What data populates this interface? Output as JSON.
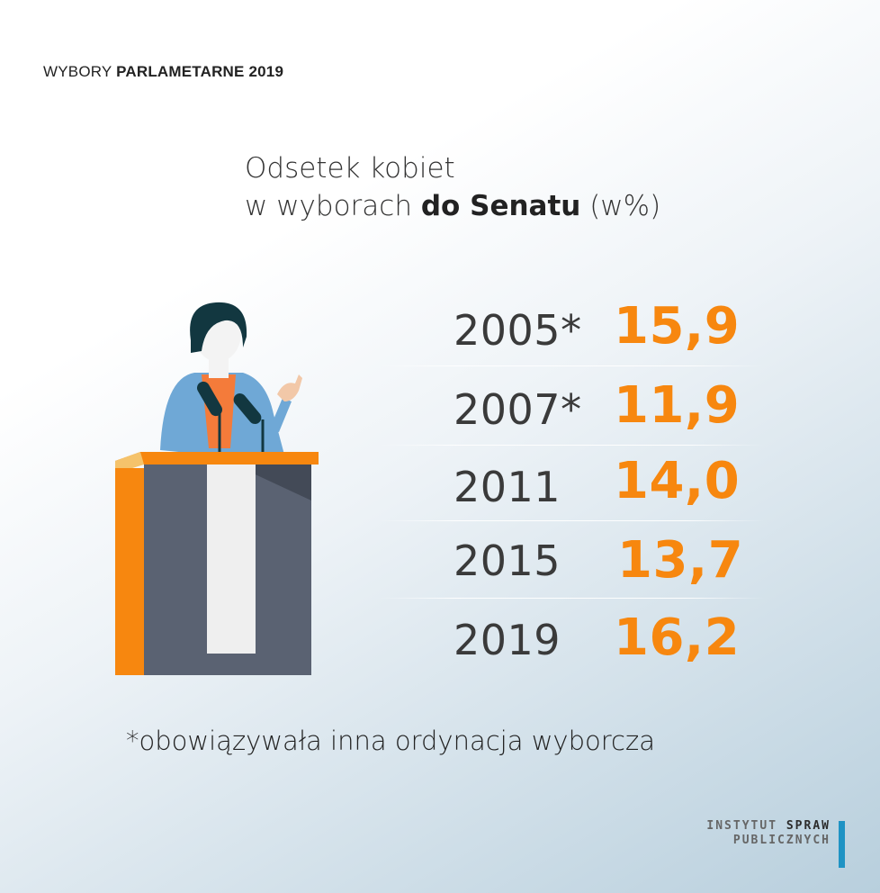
{
  "header": {
    "kicker_light": "WYBORY",
    "kicker_bold": "PARLAMETARNE 2019"
  },
  "title": {
    "line1": "Odsetek  kobiet",
    "line2_pre": "w wyborach ",
    "line2_bold": "do Senatu",
    "line2_post": " (w%)"
  },
  "chart_data": {
    "type": "table",
    "title": "Odsetek  kobiet w wyborach do Senatu (w%)",
    "columns": [
      "year",
      "value"
    ],
    "rows": [
      {
        "year": "2005*",
        "value": "15,9"
      },
      {
        "year": "2007*",
        "value": "11,9"
      },
      {
        "year": "2011",
        "value": "14,0"
      },
      {
        "year": "2015",
        "value": "13,7"
      },
      {
        "year": "2019",
        "value": "16,2"
      }
    ]
  },
  "footnote": "*obowiązywała inna ordynacja wyborcza",
  "logo": {
    "line1_a": "INSTYTUT",
    "line1_b": "SPRAW",
    "line2": "PUBLICZNYCH",
    "accent": "#1f93c4"
  },
  "colors": {
    "value": "#f7870f",
    "podium_front": "#5a6272",
    "podium_side": "#f7870f",
    "podium_top": "#f7870f",
    "jacket": "#6fa8d6",
    "hair": "#123740"
  },
  "icons": [
    "speaker-at-podium-illustration"
  ]
}
